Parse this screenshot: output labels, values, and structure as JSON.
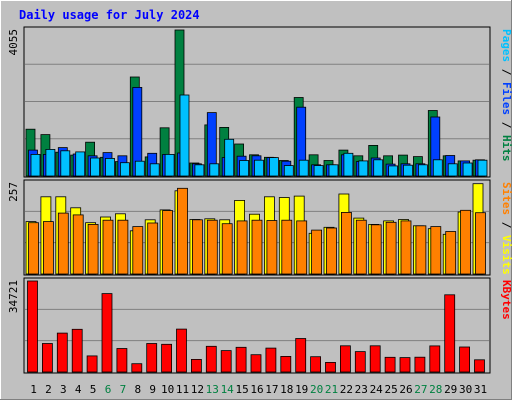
{
  "title": "Daily usage for July 2024",
  "colors": {
    "background": "#c0c0c0",
    "title": "#0000ff",
    "hits": "#008040",
    "files": "#0040ff",
    "pages": "#00c0ff",
    "visits": "#ffff00",
    "sites": "#ff8000",
    "kbytes": "#ff0000",
    "weekend_label": "#008040",
    "weekday_label": "#000000"
  },
  "chart_data": [
    {
      "type": "bar",
      "panel": "hits-files-pages",
      "scale_max_label": "4055",
      "ylim": [
        0,
        4055
      ],
      "legend": [
        {
          "text": "Pages",
          "color": "#00c0ff"
        },
        {
          "text": " / ",
          "color": "#000000"
        },
        {
          "text": "Files",
          "color": "#0040ff"
        },
        {
          "text": " / ",
          "color": "#000000"
        },
        {
          "text": "Hits",
          "color": "#008040"
        }
      ],
      "categories": [
        "1",
        "2",
        "3",
        "4",
        "5",
        "6",
        "7",
        "8",
        "9",
        "10",
        "11",
        "12",
        "13",
        "14",
        "15",
        "16",
        "17",
        "18",
        "19",
        "20",
        "21",
        "22",
        "23",
        "24",
        "25",
        "26",
        "27",
        "28",
        "29",
        "30",
        "31"
      ],
      "series": [
        {
          "name": "Hits",
          "values": [
            1300,
            1150,
            660,
            580,
            940,
            520,
            400,
            2750,
            530,
            1340,
            4055,
            360,
            1420,
            1350,
            890,
            590,
            520,
            430,
            2180,
            590,
            430,
            720,
            560,
            850,
            560,
            580,
            540,
            1820,
            560,
            420,
            440
          ]
        },
        {
          "name": "Files",
          "values": [
            720,
            600,
            790,
            610,
            560,
            650,
            560,
            2460,
            630,
            600,
            640,
            340,
            1760,
            510,
            550,
            560,
            510,
            410,
            1910,
            310,
            310,
            590,
            400,
            500,
            330,
            340,
            340,
            1640,
            570,
            420,
            450
          ]
        },
        {
          "name": "Pages",
          "values": [
            600,
            740,
            700,
            670,
            500,
            490,
            370,
            410,
            340,
            600,
            2250,
            310,
            340,
            1020,
            430,
            440,
            510,
            290,
            440,
            290,
            310,
            630,
            420,
            450,
            280,
            300,
            310,
            450,
            340,
            360,
            440
          ]
        }
      ]
    },
    {
      "type": "bar",
      "panel": "visits-sites",
      "scale_max_label": "257",
      "ylim": [
        0,
        257
      ],
      "legend": [
        {
          "text": "Sites",
          "color": "#ff8000"
        },
        {
          "text": " / ",
          "color": "#000000"
        },
        {
          "text": "Visits",
          "color": "#ffff00"
        }
      ],
      "categories": [
        "1",
        "2",
        "3",
        "4",
        "5",
        "6",
        "7",
        "8",
        "9",
        "10",
        "11",
        "12",
        "13",
        "14",
        "15",
        "16",
        "17",
        "18",
        "19",
        "20",
        "21",
        "22",
        "23",
        "24",
        "25",
        "26",
        "27",
        "28",
        "29",
        "30",
        "31"
      ],
      "series": [
        {
          "name": "Visits",
          "values": [
            148,
            218,
            218,
            187,
            145,
            161,
            170,
            122,
            153,
            181,
            235,
            154,
            156,
            153,
            208,
            169,
            218,
            216,
            220,
            115,
            132,
            226,
            158,
            140,
            150,
            154,
            136,
            128,
            112,
            175,
            255
          ]
        },
        {
          "name": "Sites",
          "values": [
            145,
            148,
            172,
            167,
            140,
            152,
            152,
            134,
            144,
            179,
            242,
            153,
            152,
            142,
            150,
            152,
            151,
            152,
            150,
            124,
            130,
            174,
            152,
            139,
            146,
            150,
            136,
            134,
            120,
            180,
            173
          ]
        }
      ]
    },
    {
      "type": "bar",
      "panel": "kbytes",
      "scale_max_label": "34721",
      "ylim": [
        0,
        34721
      ],
      "legend": [
        {
          "text": "KBytes",
          "color": "#ff0000"
        }
      ],
      "categories": [
        "1",
        "2",
        "3",
        "4",
        "5",
        "6",
        "7",
        "8",
        "9",
        "10",
        "11",
        "12",
        "13",
        "14",
        "15",
        "16",
        "17",
        "18",
        "19",
        "20",
        "21",
        "22",
        "23",
        "24",
        "25",
        "26",
        "27",
        "28",
        "29",
        "30",
        "31"
      ],
      "series": [
        {
          "name": "KBytes",
          "values": [
            34721,
            10860,
            14850,
            16300,
            6140,
            29930,
            8980,
            3170,
            10860,
            10550,
            16370,
            4790,
            9820,
            8180,
            9410,
            6590,
            9100,
            5940,
            12780,
            5820,
            3650,
            9980,
            7800,
            9980,
            5590,
            5500,
            5650,
            9970,
            29450,
            9520,
            4670
          ]
        }
      ]
    }
  ]
}
